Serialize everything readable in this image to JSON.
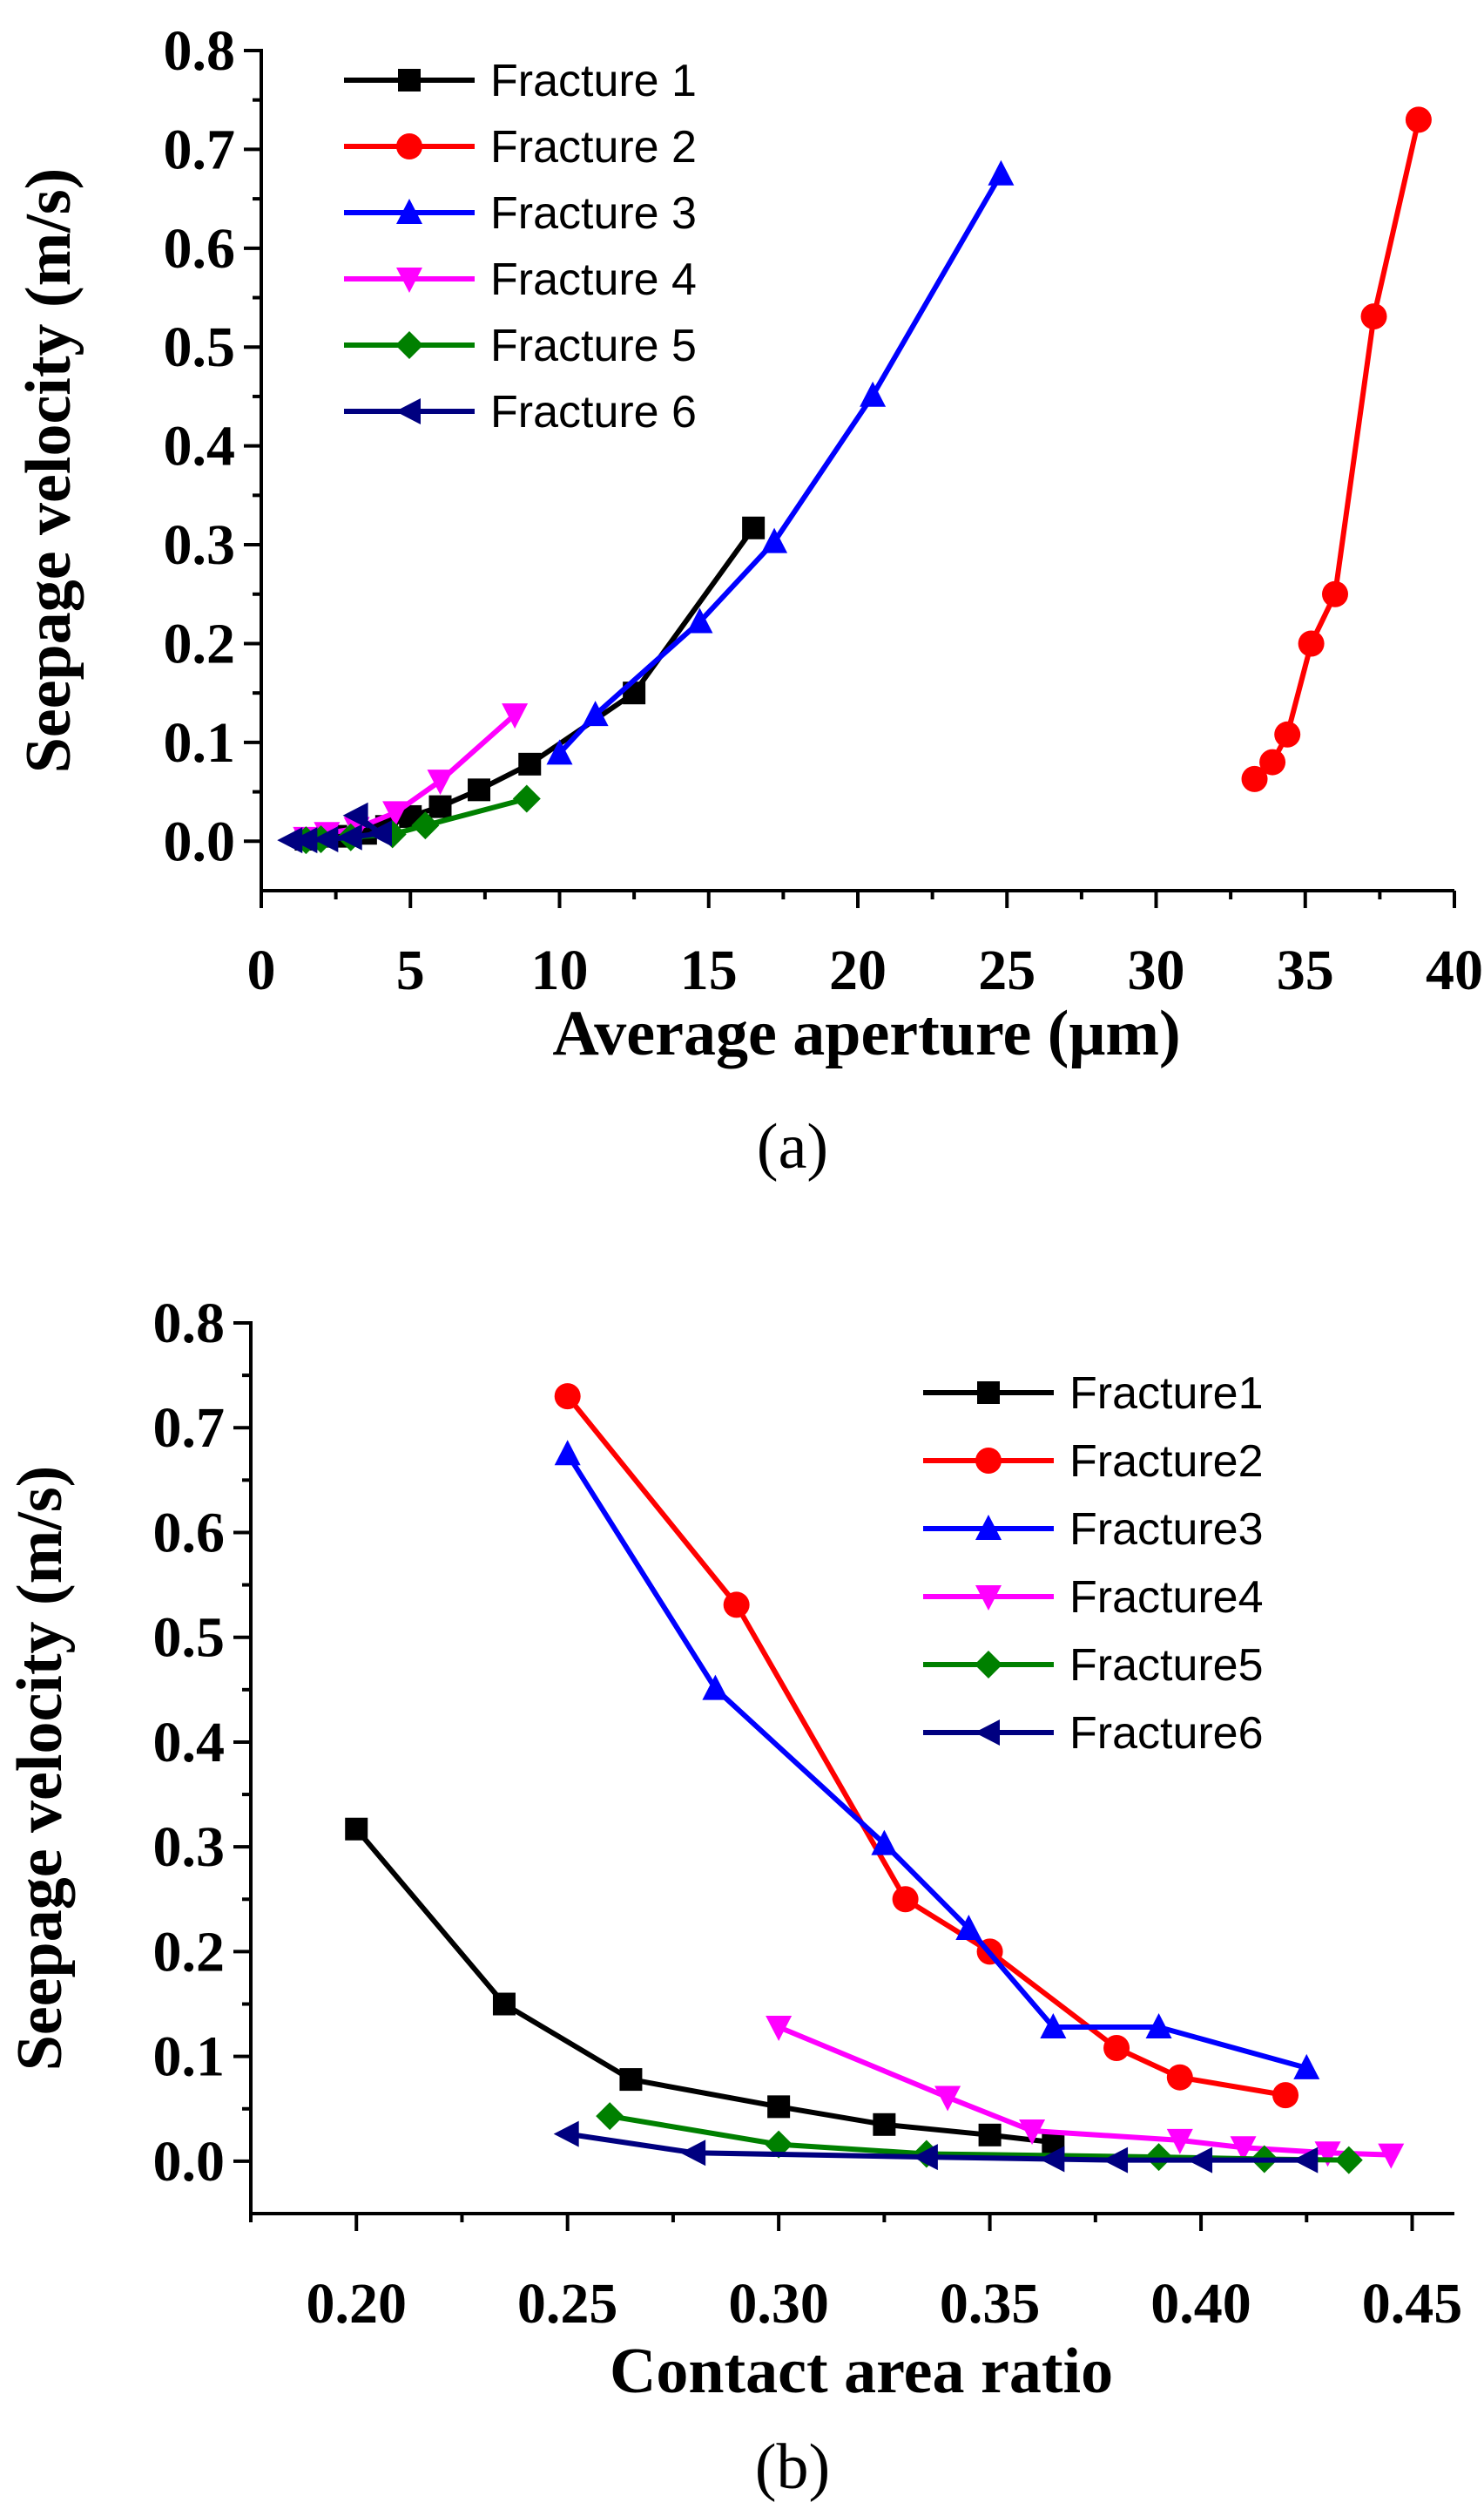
{
  "chart_data": [
    {
      "type": "line",
      "panel_label": "(a)",
      "xlabel": "Average aperture (μm)",
      "ylabel": "Seepage velocity (m/s)",
      "xlim": [
        0,
        40
      ],
      "ylim": [
        -0.05,
        0.8
      ],
      "xticks": [
        0,
        5,
        10,
        15,
        20,
        25,
        30,
        35,
        40
      ],
      "xtick_labels": [
        "0",
        "5",
        "10",
        "15",
        "20",
        "25",
        "30",
        "35",
        "40"
      ],
      "yticks": [
        0.0,
        0.1,
        0.2,
        0.3,
        0.4,
        0.5,
        0.6,
        0.7,
        0.8
      ],
      "ytick_labels": [
        "0.0",
        "0.1",
        "0.2",
        "0.3",
        "0.4",
        "0.5",
        "0.6",
        "0.7",
        "0.8"
      ],
      "legend_position": "top-left",
      "series": [
        {
          "name": "Fracture 1",
          "color": "#000000",
          "marker": "square",
          "x": [
            1.5,
            2.5,
            3.5,
            4.2,
            5.0,
            6.0,
            7.3,
            9.0,
            12.5,
            16.5
          ],
          "y": [
            0.002,
            0.005,
            0.008,
            0.015,
            0.025,
            0.035,
            0.052,
            0.078,
            0.15,
            0.317
          ]
        },
        {
          "name": "Fracture 2",
          "color": "#ff0000",
          "marker": "circle",
          "x": [
            33.3,
            33.9,
            34.4,
            35.2,
            36.0,
            37.3,
            38.8
          ],
          "y": [
            0.063,
            0.08,
            0.108,
            0.2,
            0.25,
            0.531,
            0.73
          ]
        },
        {
          "name": "Fracture 3",
          "color": "#0000ff",
          "marker": "triangle-up",
          "x": [
            10.0,
            11.2,
            14.7,
            17.2,
            20.5,
            24.8
          ],
          "y": [
            0.089,
            0.128,
            0.222,
            0.303,
            0.451,
            0.675
          ]
        },
        {
          "name": "Fracture 4",
          "color": "#ff00ff",
          "marker": "triangle-down",
          "x": [
            1.5,
            2.2,
            3.2,
            4.5,
            6.0,
            8.5
          ],
          "y": [
            0.003,
            0.008,
            0.013,
            0.029,
            0.061,
            0.128
          ]
        },
        {
          "name": "Fracture 5",
          "color": "#008000",
          "marker": "diamond",
          "x": [
            1.5,
            2.0,
            3.0,
            4.4,
            5.5,
            8.9
          ],
          "y": [
            0.001,
            0.002,
            0.004,
            0.007,
            0.016,
            0.043
          ]
        },
        {
          "name": "Fracture 6",
          "color": "#000080",
          "marker": "triangle-left",
          "x": [
            1.0,
            1.5,
            2.2,
            3.0,
            4.0,
            3.2
          ],
          "y": [
            0.001,
            0.001,
            0.002,
            0.004,
            0.008,
            0.026
          ]
        }
      ]
    },
    {
      "type": "line",
      "panel_label": "(b)",
      "xlabel": "Contact area ratio",
      "ylabel": "Seepage velocity (m/s)",
      "xlim": [
        0.175,
        0.46
      ],
      "ylim": [
        -0.05,
        0.8
      ],
      "xticks": [
        0.2,
        0.25,
        0.3,
        0.35,
        0.4,
        0.45
      ],
      "xtick_labels": [
        "0.20",
        "0.25",
        "0.30",
        "0.35",
        "0.40",
        "0.45"
      ],
      "yticks": [
        0.0,
        0.1,
        0.2,
        0.3,
        0.4,
        0.5,
        0.6,
        0.7,
        0.8
      ],
      "ytick_labels": [
        "0.0",
        "0.1",
        "0.2",
        "0.3",
        "0.4",
        "0.5",
        "0.6",
        "0.7",
        "0.8"
      ],
      "legend_position": "top-right",
      "series": [
        {
          "name": "Fracture1",
          "color": "#000000",
          "marker": "square",
          "x": [
            0.2,
            0.235,
            0.265,
            0.3,
            0.325,
            0.35,
            0.365
          ],
          "y": [
            0.317,
            0.15,
            0.078,
            0.052,
            0.035,
            0.025,
            0.018
          ]
        },
        {
          "name": "Fracture2",
          "color": "#ff0000",
          "marker": "circle",
          "x": [
            0.25,
            0.29,
            0.33,
            0.35,
            0.38,
            0.395,
            0.42
          ],
          "y": [
            0.73,
            0.531,
            0.25,
            0.2,
            0.108,
            0.08,
            0.063
          ]
        },
        {
          "name": "Fracture3",
          "color": "#0000ff",
          "marker": "triangle-up",
          "x": [
            0.25,
            0.285,
            0.325,
            0.345,
            0.365,
            0.39,
            0.425
          ],
          "y": [
            0.675,
            0.451,
            0.303,
            0.222,
            0.128,
            0.128,
            0.089
          ]
        },
        {
          "name": "Fracture4",
          "color": "#ff00ff",
          "marker": "triangle-down",
          "x": [
            0.3,
            0.34,
            0.36,
            0.395,
            0.41,
            0.43,
            0.445
          ],
          "y": [
            0.128,
            0.061,
            0.029,
            0.02,
            0.013,
            0.008,
            0.006
          ]
        },
        {
          "name": "Fracture5",
          "color": "#008000",
          "marker": "diamond",
          "x": [
            0.26,
            0.3,
            0.335,
            0.39,
            0.415,
            0.435
          ],
          "y": [
            0.043,
            0.016,
            0.007,
            0.004,
            0.002,
            0.001
          ]
        },
        {
          "name": "Fracture6",
          "color": "#000080",
          "marker": "triangle-left",
          "x": [
            0.25,
            0.28,
            0.335,
            0.365,
            0.38,
            0.4,
            0.425
          ],
          "y": [
            0.026,
            0.008,
            0.004,
            0.002,
            0.001,
            0.001,
            0.001
          ]
        }
      ]
    }
  ]
}
